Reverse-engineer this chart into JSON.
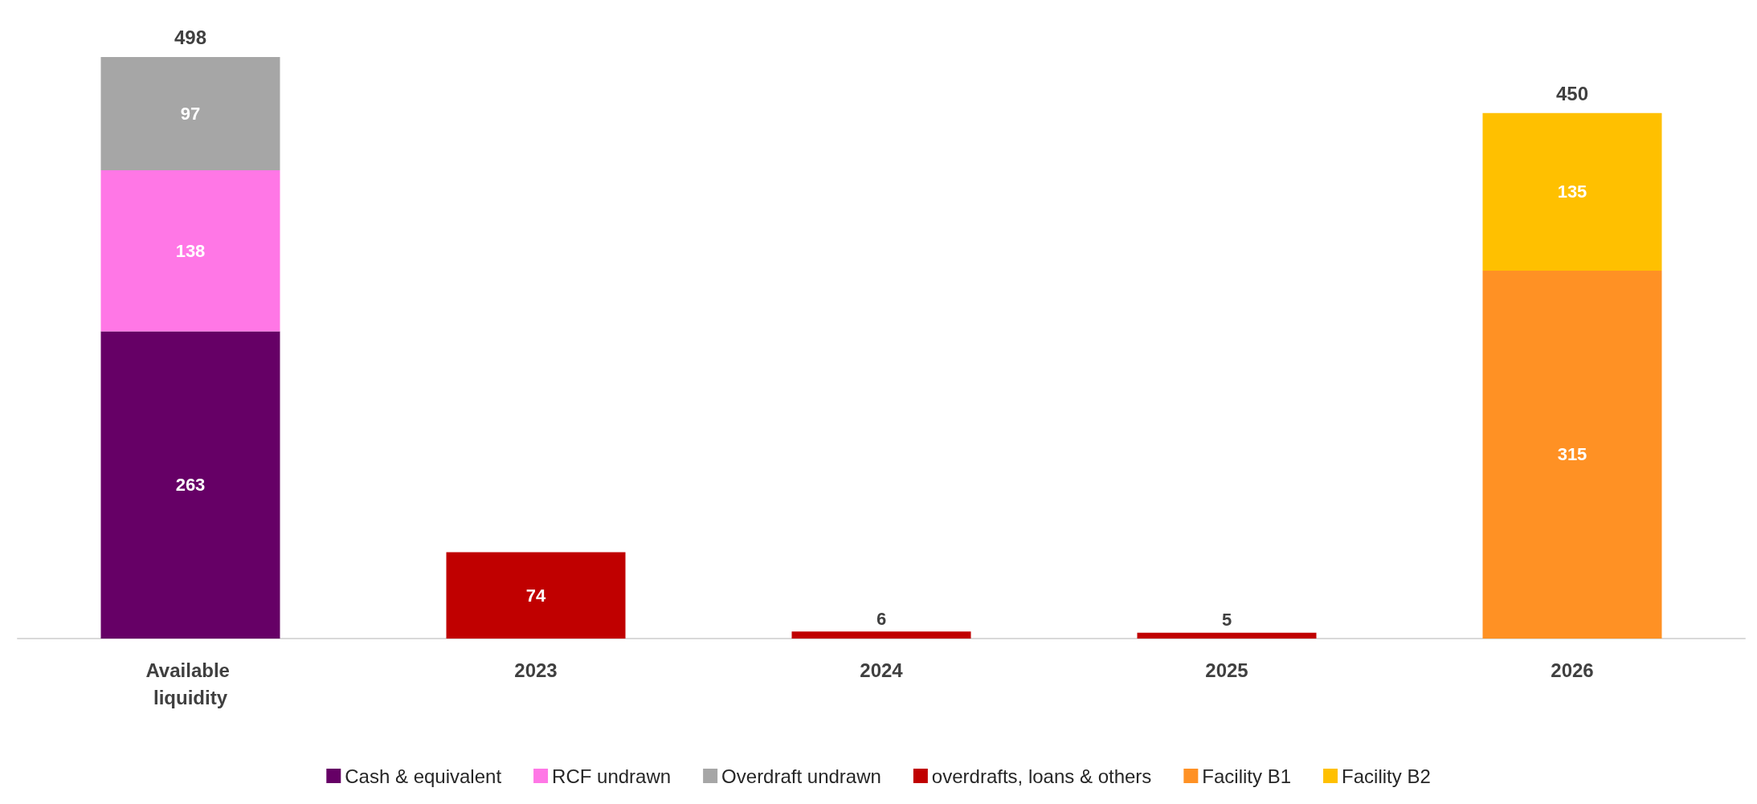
{
  "chart_data": {
    "type": "bar",
    "stacked": true,
    "data_labels": true,
    "legend": "bottom",
    "categories": [
      "Available liquidity",
      "2023",
      "2024",
      "2025",
      "2026"
    ],
    "series": [
      {
        "name": "Cash & equivalent",
        "color": "#660066",
        "values": [
          263,
          null,
          null,
          null,
          null
        ]
      },
      {
        "name": "RCF undrawn",
        "color": "#ff77e6",
        "values": [
          138,
          null,
          null,
          null,
          null
        ]
      },
      {
        "name": "Overdraft undrawn",
        "color": "#a6a6a6",
        "values": [
          97,
          null,
          null,
          null,
          null
        ]
      },
      {
        "name": "overdrafts, loans & others",
        "color": "#c00000",
        "values": [
          null,
          74,
          6,
          5,
          null
        ]
      },
      {
        "name": "Facility B1",
        "color": "#ff9124",
        "values": [
          null,
          null,
          null,
          null,
          315
        ]
      },
      {
        "name": "Facility B2",
        "color": "#ffc000",
        "values": [
          null,
          null,
          null,
          null,
          135
        ]
      }
    ],
    "totals": [
      "498",
      null,
      null,
      null,
      "450"
    ]
  }
}
